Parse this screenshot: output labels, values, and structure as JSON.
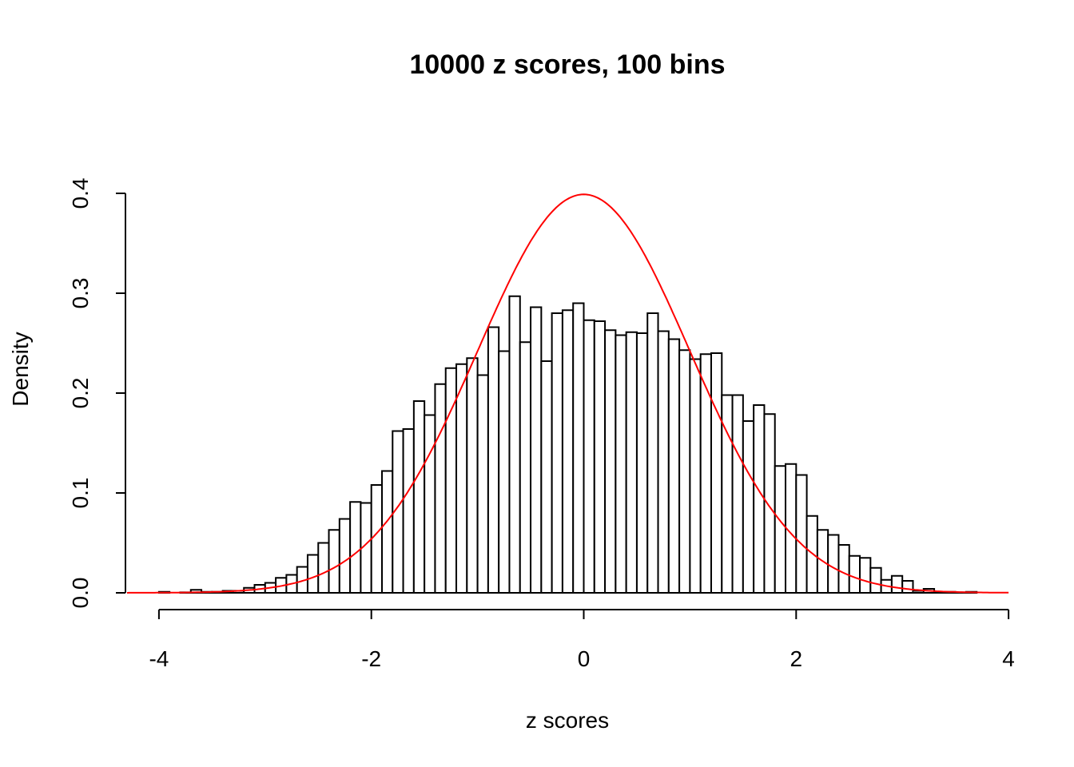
{
  "chart_data": {
    "type": "bar",
    "title": "10000 z scores, 100 bins",
    "xlabel": "z scores",
    "ylabel": "Density",
    "xlim": [
      -4.3,
      4.0
    ],
    "ylim": [
      0,
      0.4
    ],
    "x_ticks": [
      "-4",
      "-2",
      "0",
      "2",
      "4"
    ],
    "y_ticks": [
      "0.0",
      "0.1",
      "0.2",
      "0.3",
      "0.4"
    ],
    "bin_width": 0.1,
    "bin_starts": [
      -4.0,
      -3.9,
      -3.8,
      -3.7,
      -3.6,
      -3.5,
      -3.4,
      -3.3,
      -3.2,
      -3.1,
      -3.0,
      -2.9,
      -2.8,
      -2.7,
      -2.6,
      -2.5,
      -2.4,
      -2.3,
      -2.2,
      -2.1,
      -2.0,
      -1.9,
      -1.8,
      -1.7,
      -1.6,
      -1.5,
      -1.4,
      -1.3,
      -1.2,
      -1.1,
      -1.0,
      -0.9,
      -0.8,
      -0.7,
      -0.6,
      -0.5,
      -0.4,
      -0.3,
      -0.2,
      -0.1,
      0.0,
      0.1,
      0.2,
      0.3,
      0.4,
      0.5,
      0.6,
      0.7,
      0.8,
      0.9,
      1.0,
      1.1,
      1.2,
      1.3,
      1.4,
      1.5,
      1.6,
      1.7,
      1.8,
      1.9,
      2.0,
      2.1,
      2.2,
      2.3,
      2.4,
      2.5,
      2.6,
      2.7,
      2.8,
      2.9,
      3.0,
      3.1,
      3.2,
      3.3,
      3.4,
      3.5,
      3.6
    ],
    "density": [
      0.001,
      0.0,
      0.0005,
      0.003,
      0.001,
      0.001,
      0.002,
      0.002,
      0.005,
      0.008,
      0.01,
      0.015,
      0.018,
      0.026,
      0.038,
      0.05,
      0.063,
      0.074,
      0.091,
      0.09,
      0.108,
      0.122,
      0.162,
      0.164,
      0.192,
      0.178,
      0.209,
      0.225,
      0.229,
      0.235,
      0.218,
      0.266,
      0.242,
      0.297,
      0.251,
      0.286,
      0.232,
      0.28,
      0.283,
      0.29,
      0.273,
      0.272,
      0.263,
      0.258,
      0.261,
      0.26,
      0.28,
      0.262,
      0.254,
      0.243,
      0.234,
      0.239,
      0.24,
      0.198,
      0.198,
      0.172,
      0.188,
      0.179,
      0.127,
      0.129,
      0.118,
      0.077,
      0.063,
      0.058,
      0.048,
      0.037,
      0.035,
      0.025,
      0.013,
      0.017,
      0.012,
      0.002,
      0.004,
      0.001,
      0.001,
      0.0005,
      0.001
    ],
    "overlay": {
      "type": "line",
      "function": "standard normal density",
      "color": "#ff0000"
    },
    "bar_fill": "#ffffff",
    "bar_stroke": "#000000",
    "grid": false
  }
}
